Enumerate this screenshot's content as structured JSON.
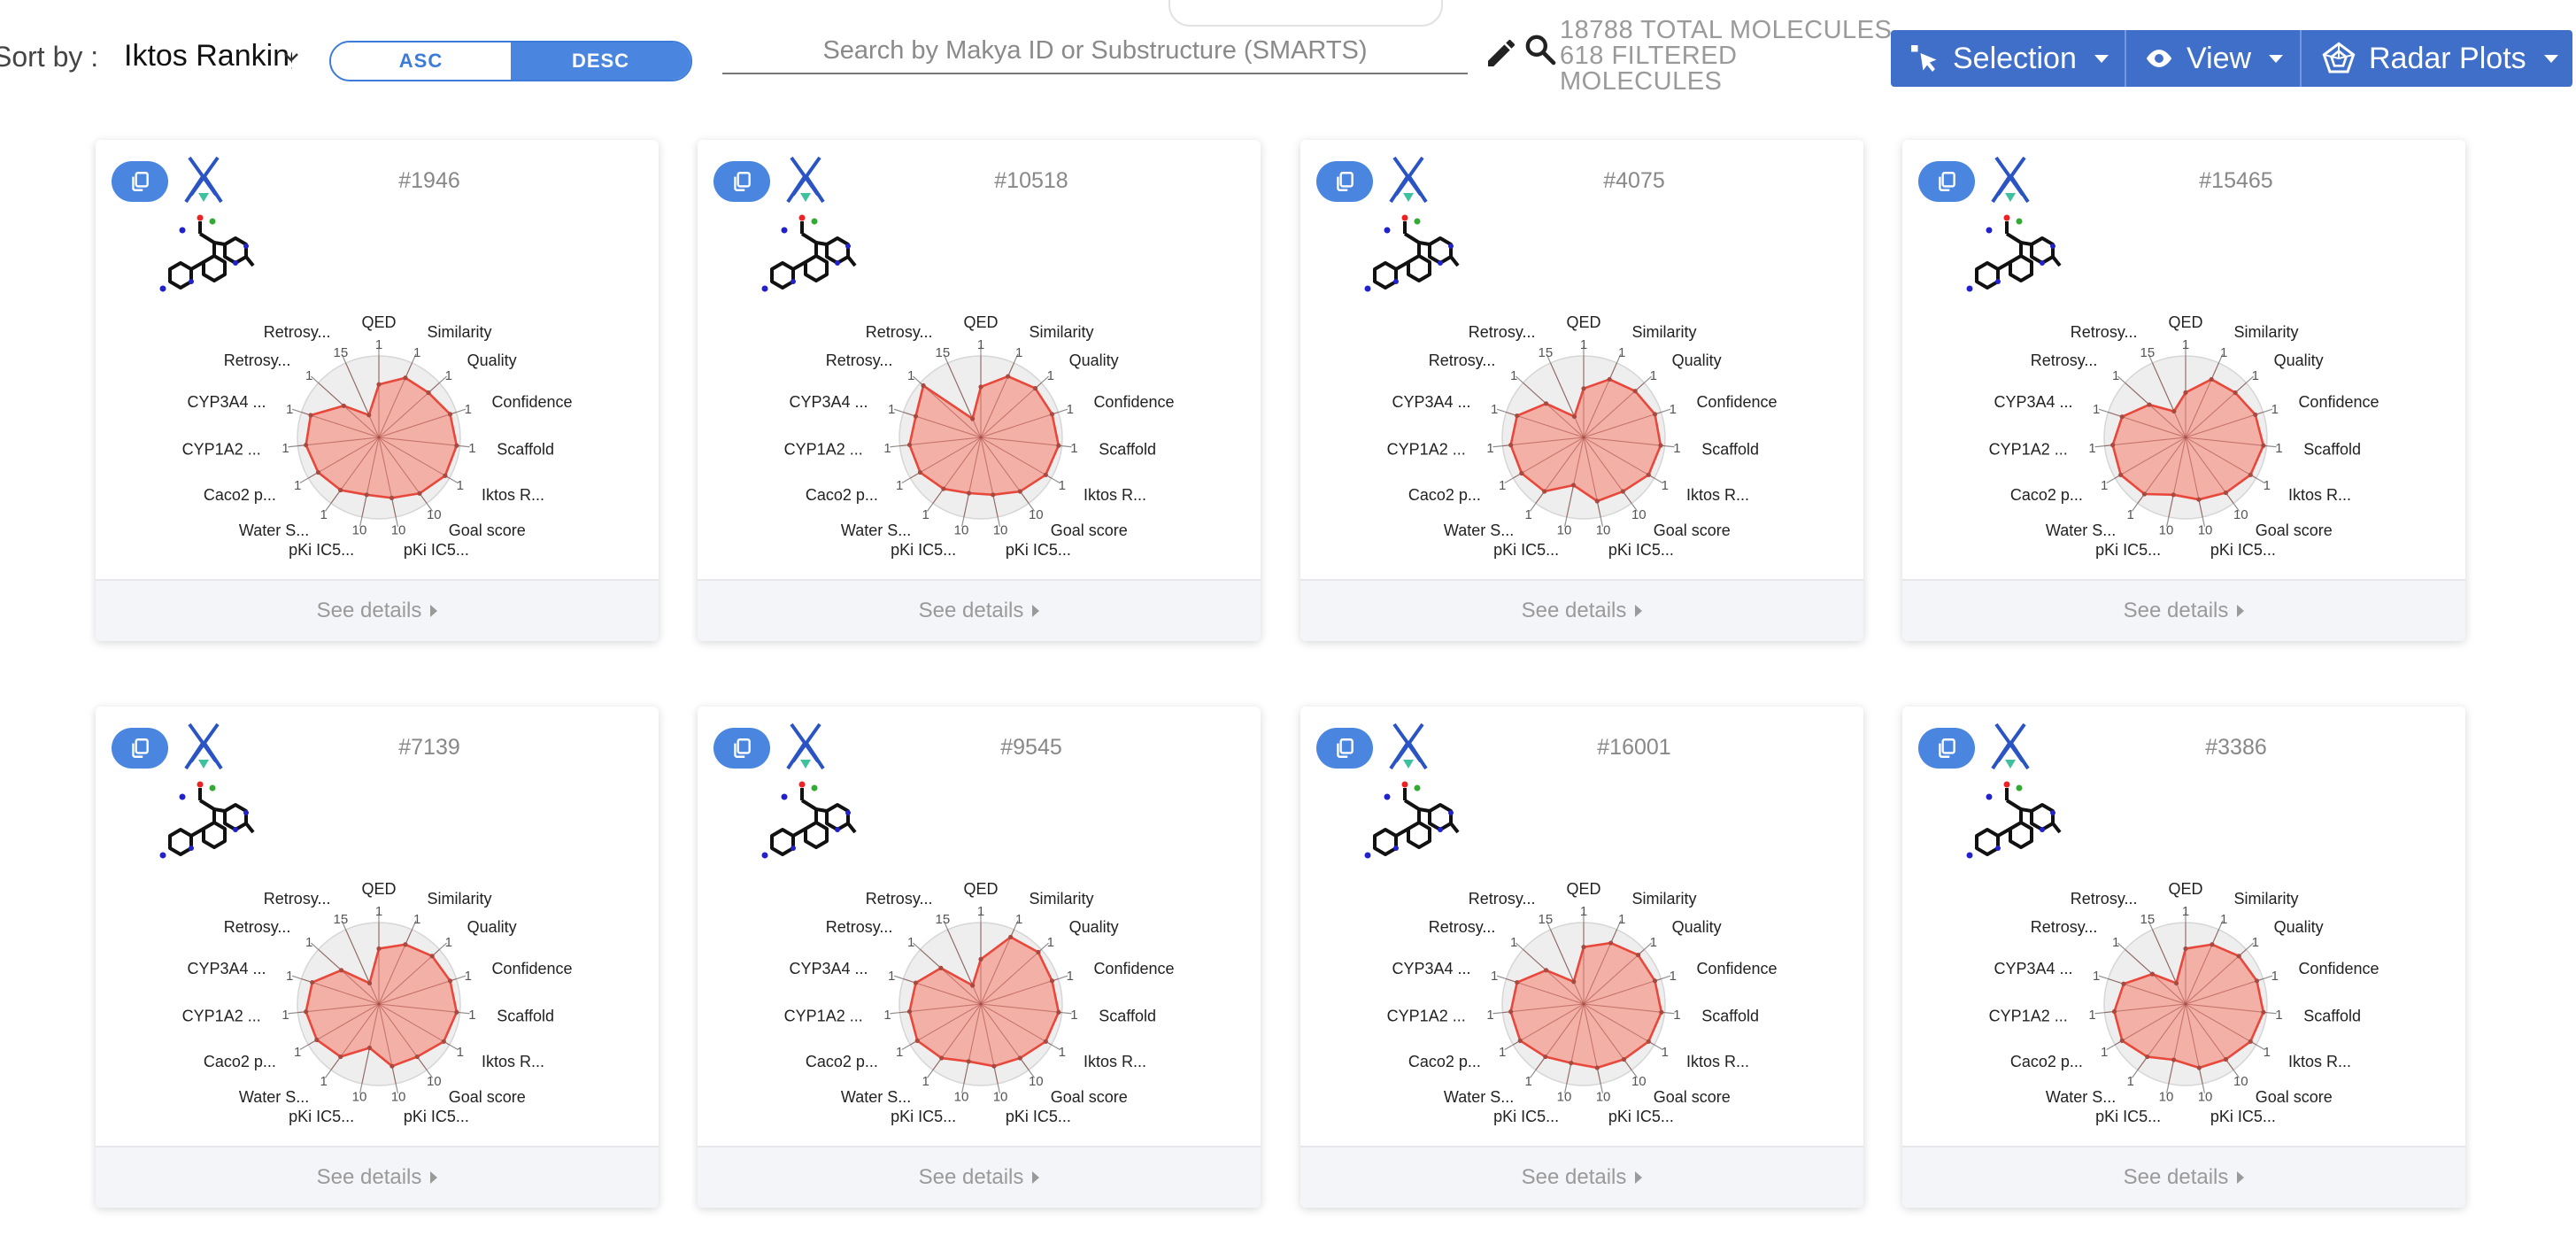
{
  "toolbar": {
    "sort_label": "Sort by :",
    "sort_value": "Iktos Ranking",
    "asc_label": "ASC",
    "desc_label": "DESC",
    "search_placeholder": "Search by Makya ID or Substructure (SMARTS)",
    "total_molecules": "18788 TOTAL MOLECULES",
    "filtered_molecules": "618 FILTERED MOLECULES",
    "buttons": [
      {
        "label": "Selection",
        "icon": "cursor-icon"
      },
      {
        "label": "View",
        "icon": "eye-icon"
      },
      {
        "label": "Radar Plots",
        "icon": "pentagon-radar-icon"
      }
    ]
  },
  "colors": {
    "accent": "#4a86e0",
    "button_bar": "#3f6fc9",
    "radar_fill": "#f3a49a",
    "radar_stroke": "#e8483b"
  },
  "radar_axes": [
    {
      "label": "QED",
      "max": "1"
    },
    {
      "label": "Similarity",
      "max": "1"
    },
    {
      "label": "Quality",
      "max": "1"
    },
    {
      "label": "Confidence",
      "max": "1"
    },
    {
      "label": "Scaffold",
      "max": "1"
    },
    {
      "label": "Iktos R...",
      "max": "1"
    },
    {
      "label": "Goal score",
      "max": "10"
    },
    {
      "label": "pKi IC5...",
      "max": "10"
    },
    {
      "label": "pKi IC5...",
      "max": "10"
    },
    {
      "label": "Water S...",
      "max": "1"
    },
    {
      "label": "Caco2 p...",
      "max": "1"
    },
    {
      "label": "CYP1A2 ...",
      "max": "1"
    },
    {
      "label": "CYP3A4 ...",
      "max": "1"
    },
    {
      "label": "Retrosy...",
      "max": "1"
    },
    {
      "label": "Retrosy...",
      "max": "15"
    }
  ],
  "see_details_label": "See details",
  "molecules": [
    {
      "id": "#1946",
      "values": [
        0.65,
        0.8,
        0.82,
        0.92,
        0.96,
        0.94,
        0.85,
        0.76,
        0.72,
        0.8,
        0.86,
        0.9,
        0.88,
        0.58,
        0.3
      ]
    },
    {
      "id": "#10518",
      "values": [
        0.62,
        0.82,
        0.9,
        0.92,
        0.96,
        0.92,
        0.82,
        0.72,
        0.7,
        0.78,
        0.86,
        0.88,
        0.84,
        0.95,
        0.25
      ]
    },
    {
      "id": "#4075",
      "values": [
        0.6,
        0.78,
        0.85,
        0.92,
        0.95,
        0.92,
        0.82,
        0.8,
        0.6,
        0.82,
        0.88,
        0.9,
        0.86,
        0.62,
        0.28
      ]
    },
    {
      "id": "#15465",
      "values": [
        0.55,
        0.78,
        0.82,
        0.9,
        0.96,
        0.92,
        0.84,
        0.78,
        0.72,
        0.86,
        0.92,
        0.9,
        0.82,
        0.6,
        0.35
      ]
    },
    {
      "id": "#7139",
      "values": [
        0.68,
        0.8,
        0.88,
        0.92,
        0.96,
        0.92,
        0.8,
        0.78,
        0.55,
        0.8,
        0.88,
        0.9,
        0.86,
        0.62,
        0.28
      ]
    },
    {
      "id": "#9545",
      "values": [
        0.55,
        0.9,
        0.95,
        0.92,
        0.96,
        0.92,
        0.82,
        0.78,
        0.72,
        0.82,
        0.9,
        0.88,
        0.84,
        0.66,
        0.25
      ]
    },
    {
      "id": "#16001",
      "values": [
        0.7,
        0.82,
        0.9,
        0.92,
        0.96,
        0.92,
        0.84,
        0.8,
        0.74,
        0.8,
        0.9,
        0.9,
        0.86,
        0.62,
        0.3
      ]
    },
    {
      "id": "#3386",
      "values": [
        0.68,
        0.8,
        0.88,
        0.92,
        0.96,
        0.92,
        0.84,
        0.8,
        0.7,
        0.8,
        0.9,
        0.88,
        0.8,
        0.55,
        0.28
      ]
    }
  ]
}
